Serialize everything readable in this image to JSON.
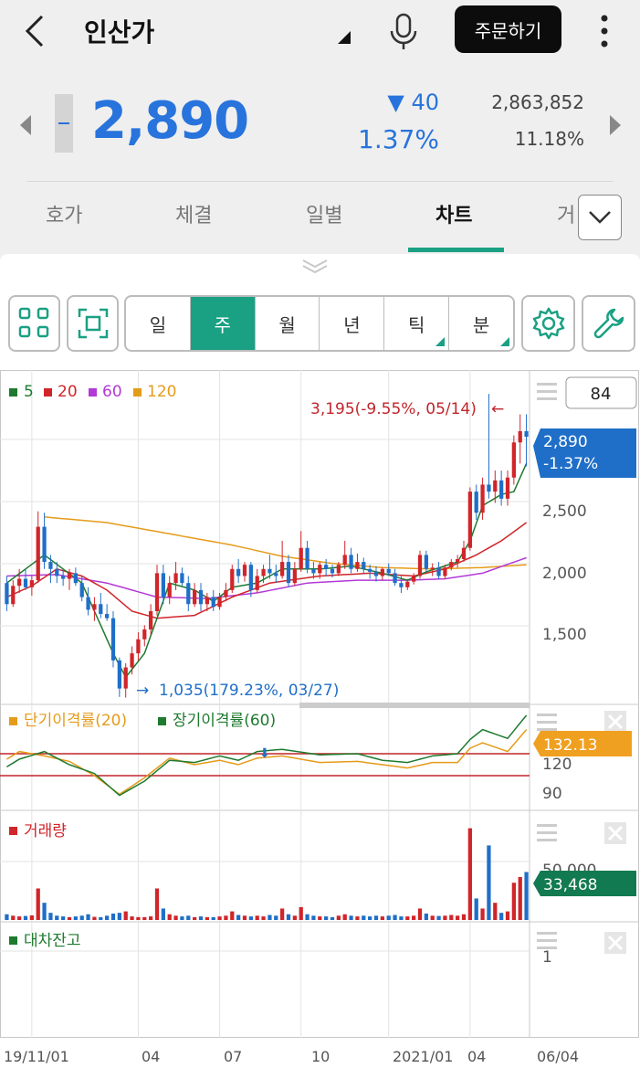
{
  "header": {
    "title": "인산가",
    "order_button": "주문하기"
  },
  "quote": {
    "price": "2,890",
    "change": "▼ 40",
    "change_pct": "1.37%",
    "volume": "2,863,852",
    "turnover": "11.18%"
  },
  "tabs": [
    {
      "label": "호가",
      "active": false
    },
    {
      "label": "체결",
      "active": false
    },
    {
      "label": "일별",
      "active": false
    },
    {
      "label": "차트",
      "active": true
    },
    {
      "label": "거",
      "active": false
    }
  ],
  "toolbar": {
    "periods": [
      {
        "label": "일",
        "active": false,
        "menu": false
      },
      {
        "label": "주",
        "active": true,
        "menu": false
      },
      {
        "label": "월",
        "active": false,
        "menu": false
      },
      {
        "label": "년",
        "active": false,
        "menu": false
      },
      {
        "label": "틱",
        "active": false,
        "menu": true
      },
      {
        "label": "분",
        "active": false,
        "menu": true
      }
    ]
  },
  "colors": {
    "up": "#d0252a",
    "down": "#1f6fc8",
    "ma5": "#1e7a2e",
    "ma20": "#d0252a",
    "ma60": "#b33ad6",
    "ma120": "#e59b1a",
    "accent": "#1aa083",
    "price_blue": "#2874dc"
  },
  "chart_data": {
    "type": "candlestick",
    "period": "weekly",
    "price_panel": {
      "legend": [
        {
          "label": "5",
          "color": "#1e7a2e"
        },
        {
          "label": "20",
          "color": "#d0252a"
        },
        {
          "label": "60",
          "color": "#b33ad6"
        },
        {
          "label": "120",
          "color": "#e59b1a"
        }
      ],
      "y_ticks": [
        "2,500",
        "2,000",
        "1,500"
      ],
      "y_range": [
        1000,
        3300
      ],
      "visible_count": "84",
      "current_price": "2,890",
      "current_change": "-1.37%",
      "high_annotation": "3,195(-9.55%, 05/14)",
      "low_annotation": "1,035(179.23%, 03/27)",
      "candles": [
        [
          1850,
          1900,
          1650,
          1700
        ],
        [
          1700,
          1870,
          1680,
          1830
        ],
        [
          1830,
          1950,
          1780,
          1880
        ],
        [
          1880,
          1950,
          1800,
          1820
        ],
        [
          1820,
          1900,
          1760,
          1870
        ],
        [
          1870,
          2360,
          1850,
          2250
        ],
        [
          2250,
          2350,
          1950,
          2000
        ],
        [
          2000,
          2050,
          1850,
          1950
        ],
        [
          1950,
          2000,
          1850,
          1900
        ],
        [
          1900,
          1950,
          1830,
          1880
        ],
        [
          1880,
          1950,
          1800,
          1920
        ],
        [
          1920,
          1960,
          1830,
          1850
        ],
        [
          1850,
          1900,
          1720,
          1750
        ],
        [
          1750,
          1820,
          1620,
          1660
        ],
        [
          1660,
          1750,
          1580,
          1700
        ],
        [
          1700,
          1780,
          1600,
          1630
        ],
        [
          1630,
          1700,
          1580,
          1600
        ],
        [
          1600,
          1650,
          1250,
          1300
        ],
        [
          1300,
          1320,
          1040,
          1100
        ],
        [
          1100,
          1280,
          1035,
          1250
        ],
        [
          1250,
          1400,
          1200,
          1350
        ],
        [
          1350,
          1500,
          1300,
          1450
        ],
        [
          1450,
          1550,
          1400,
          1520
        ],
        [
          1520,
          1700,
          1480,
          1650
        ],
        [
          1650,
          1980,
          1620,
          1920
        ],
        [
          1920,
          1980,
          1700,
          1750
        ],
        [
          1750,
          1900,
          1700,
          1850
        ],
        [
          1850,
          2000,
          1800,
          1920
        ],
        [
          1920,
          1960,
          1830,
          1850
        ],
        [
          1850,
          1900,
          1650,
          1700
        ],
        [
          1700,
          1850,
          1680,
          1800
        ],
        [
          1800,
          1850,
          1650,
          1700
        ],
        [
          1700,
          1780,
          1650,
          1750
        ],
        [
          1750,
          1800,
          1650,
          1680
        ],
        [
          1680,
          1780,
          1660,
          1750
        ],
        [
          1750,
          1850,
          1720,
          1800
        ],
        [
          1800,
          1980,
          1780,
          1950
        ],
        [
          1950,
          2020,
          1850,
          1900
        ],
        [
          1900,
          2000,
          1860,
          1980
        ],
        [
          1980,
          2000,
          1750,
          1800
        ],
        [
          1800,
          1950,
          1780,
          1900
        ],
        [
          1900,
          1980,
          1850,
          1950
        ],
        [
          1950,
          2050,
          1880,
          1920
        ],
        [
          1920,
          1980,
          1850,
          1900
        ],
        [
          1900,
          2150,
          1880,
          2000
        ],
        [
          2000,
          2050,
          1820,
          1850
        ],
        [
          1850,
          2000,
          1830,
          1950
        ],
        [
          1950,
          2220,
          1930,
          2100
        ],
        [
          2100,
          2150,
          1920,
          1950
        ],
        [
          1950,
          2000,
          1880,
          1920
        ],
        [
          1920,
          2000,
          1880,
          1980
        ],
        [
          1980,
          2020,
          1900,
          1950
        ],
        [
          1950,
          1980,
          1890,
          1920
        ],
        [
          1920,
          2000,
          1900,
          1980
        ],
        [
          1980,
          2150,
          1950,
          2050
        ],
        [
          2050,
          2100,
          1920,
          1950
        ],
        [
          1950,
          2060,
          1930,
          2000
        ],
        [
          2000,
          2030,
          1920,
          1950
        ],
        [
          1950,
          1980,
          1880,
          1930
        ],
        [
          1930,
          1970,
          1860,
          1900
        ],
        [
          1900,
          1960,
          1870,
          1950
        ],
        [
          1950,
          1990,
          1900,
          1920
        ],
        [
          1920,
          1950,
          1830,
          1850
        ],
        [
          1850,
          1900,
          1780,
          1820
        ],
        [
          1820,
          1880,
          1800,
          1860
        ],
        [
          1860,
          1920,
          1840,
          1900
        ],
        [
          1900,
          2080,
          1880,
          2050
        ],
        [
          2050,
          2080,
          1930,
          1950
        ],
        [
          1950,
          1990,
          1900,
          1960
        ],
        [
          1960,
          2000,
          1880,
          1900
        ],
        [
          1900,
          1980,
          1880,
          1960
        ],
        [
          1960,
          2020,
          1940,
          2000
        ],
        [
          2000,
          2050,
          1960,
          2020
        ],
        [
          2020,
          2150,
          2000,
          2100
        ],
        [
          2100,
          2530,
          2080,
          2500
        ],
        [
          2500,
          2550,
          2300,
          2350
        ],
        [
          2350,
          2600,
          2300,
          2550
        ],
        [
          2550,
          3195,
          2450,
          2500
        ],
        [
          2500,
          2650,
          2420,
          2580
        ],
        [
          2580,
          2650,
          2400,
          2450
        ],
        [
          2450,
          2650,
          2400,
          2600
        ],
        [
          2600,
          2900,
          2550,
          2850
        ],
        [
          2850,
          3050,
          2700,
          2930
        ],
        [
          2930,
          3050,
          2680,
          2890
        ]
      ],
      "ma_anchors": {
        "ma5": [
          [
            0,
            1850
          ],
          [
            6,
            2050
          ],
          [
            12,
            1850
          ],
          [
            17,
            1350
          ],
          [
            19,
            1180
          ],
          [
            22,
            1350
          ],
          [
            24,
            1600
          ],
          [
            26,
            1850
          ],
          [
            30,
            1800
          ],
          [
            33,
            1720
          ],
          [
            36,
            1820
          ],
          [
            40,
            1850
          ],
          [
            44,
            1950
          ],
          [
            50,
            1950
          ],
          [
            55,
            1970
          ],
          [
            60,
            1920
          ],
          [
            64,
            1870
          ],
          [
            67,
            1930
          ],
          [
            72,
            2000
          ],
          [
            74,
            2150
          ],
          [
            76,
            2400
          ],
          [
            79,
            2480
          ],
          [
            81,
            2500
          ],
          [
            83,
            2700
          ]
        ],
        "ma20": [
          [
            0,
            1750
          ],
          [
            4,
            1830
          ],
          [
            8,
            1950
          ],
          [
            12,
            1900
          ],
          [
            16,
            1800
          ],
          [
            20,
            1650
          ],
          [
            24,
            1600
          ],
          [
            30,
            1620
          ],
          [
            36,
            1750
          ],
          [
            42,
            1850
          ],
          [
            50,
            1900
          ],
          [
            58,
            1920
          ],
          [
            65,
            1900
          ],
          [
            70,
            1950
          ],
          [
            75,
            2050
          ],
          [
            79,
            2150
          ],
          [
            83,
            2280
          ]
        ],
        "ma60": [
          [
            0,
            1900
          ],
          [
            8,
            1910
          ],
          [
            16,
            1850
          ],
          [
            24,
            1750
          ],
          [
            32,
            1740
          ],
          [
            40,
            1780
          ],
          [
            48,
            1850
          ],
          [
            56,
            1870
          ],
          [
            64,
            1870
          ],
          [
            70,
            1880
          ],
          [
            76,
            1920
          ],
          [
            83,
            2030
          ]
        ],
        "ma120": [
          [
            6,
            2320
          ],
          [
            16,
            2280
          ],
          [
            26,
            2200
          ],
          [
            36,
            2120
          ],
          [
            44,
            2040
          ],
          [
            52,
            1990
          ],
          [
            60,
            1960
          ],
          [
            68,
            1950
          ],
          [
            76,
            1960
          ],
          [
            83,
            1980
          ]
        ]
      }
    },
    "disparity_panel": {
      "legend": [
        {
          "label": "단기이격률(20)",
          "color": "#e59b1a"
        },
        {
          "label": "장기이격률(60)",
          "color": "#1e7a2e"
        }
      ],
      "y_ticks": [
        "120",
        "90"
      ],
      "y_range": [
        60,
        150
      ],
      "reference_lines": [
        110,
        90
      ],
      "current_value": "132.13",
      "short_anchors": [
        [
          0,
          105
        ],
        [
          2,
          112
        ],
        [
          6,
          108
        ],
        [
          10,
          103
        ],
        [
          14,
          90
        ],
        [
          18,
          73
        ],
        [
          22,
          88
        ],
        [
          26,
          106
        ],
        [
          30,
          100
        ],
        [
          34,
          104
        ],
        [
          37,
          100
        ],
        [
          40,
          106
        ],
        [
          44,
          108
        ],
        [
          50,
          102
        ],
        [
          56,
          103
        ],
        [
          60,
          100
        ],
        [
          64,
          97
        ],
        [
          68,
          102
        ],
        [
          72,
          102
        ],
        [
          74,
          115
        ],
        [
          76,
          120
        ],
        [
          80,
          112
        ],
        [
          83,
          132
        ]
      ],
      "long_anchors": [
        [
          0,
          98
        ],
        [
          2,
          105
        ],
        [
          6,
          112
        ],
        [
          10,
          100
        ],
        [
          14,
          92
        ],
        [
          18,
          72
        ],
        [
          22,
          85
        ],
        [
          26,
          104
        ],
        [
          30,
          102
        ],
        [
          34,
          108
        ],
        [
          37,
          104
        ],
        [
          40,
          112
        ],
        [
          44,
          114
        ],
        [
          50,
          109
        ],
        [
          56,
          110
        ],
        [
          60,
          104
        ],
        [
          64,
          102
        ],
        [
          68,
          108
        ],
        [
          72,
          110
        ],
        [
          74,
          123
        ],
        [
          76,
          132
        ],
        [
          80,
          124
        ],
        [
          83,
          145
        ]
      ]
    },
    "volume_panel": {
      "legend": [
        {
          "label": "거래량",
          "color": "#d0252a"
        }
      ],
      "y_ticks": [
        "50,000"
      ],
      "y_max": 65000,
      "current_value": "33,468",
      "values": [
        4000,
        3000,
        2500,
        2800,
        3200,
        22000,
        12000,
        5000,
        3000,
        2500,
        2000,
        2500,
        3000,
        4000,
        2200,
        2000,
        3000,
        4500,
        5000,
        6000,
        2500,
        2000,
        2000,
        2500,
        22000,
        8000,
        4000,
        3000,
        2500,
        3000,
        2000,
        2500,
        2000,
        2000,
        2500,
        3000,
        6000,
        3500,
        3000,
        2500,
        3000,
        2500,
        3500,
        3000,
        8000,
        4000,
        3000,
        9000,
        4000,
        3000,
        2500,
        2500,
        2000,
        3000,
        4000,
        3000,
        2500,
        3000,
        2500,
        3000,
        2500,
        3000,
        3500,
        2500,
        2500,
        3000,
        8000,
        4500,
        3000,
        2800,
        3000,
        3500,
        3000,
        4000,
        64000,
        15000,
        8000,
        52000,
        12000,
        5000,
        6000,
        26000,
        30000,
        33468
      ]
    },
    "loan_panel": {
      "legend": [
        {
          "label": "대차잔고",
          "color": "#1e7a2e"
        }
      ],
      "y_ticks": [
        "1"
      ]
    },
    "x_ticks": [
      {
        "label": "19/11/01",
        "index": 4
      },
      {
        "label": "04",
        "index": 21
      },
      {
        "label": "07",
        "index": 34
      },
      {
        "label": "10",
        "index": 47
      },
      {
        "label": "2021/01",
        "index": 61
      },
      {
        "label": "04",
        "index": 74
      },
      {
        "label": "06/04",
        "index": 86
      }
    ]
  }
}
